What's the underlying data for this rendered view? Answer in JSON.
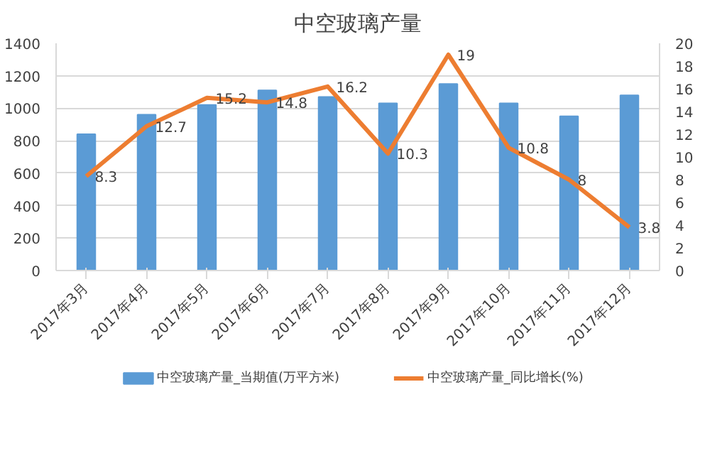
{
  "chart_data": {
    "type": "bar",
    "title": "中空玻璃产量",
    "categories": [
      "2017年3月",
      "2017年4月",
      "2017年5月",
      "2017年6月",
      "2017年7月",
      "2017年8月",
      "2017年9月",
      "2017年10月",
      "2017年11月",
      "2017年12月"
    ],
    "series": [
      {
        "name": "中空玻璃产量_当期值(万平方米)",
        "color": "#5b9bd5",
        "values": [
          840,
          960,
          1020,
          1110,
          1070,
          1030,
          1150,
          1030,
          950,
          1080
        ]
      },
      {
        "name": "中空玻璃产量_同比增长(%)",
        "color": "#ed7d31",
        "type": "line",
        "axis": "y2",
        "data_labels": true,
        "values": [
          8.3,
          12.7,
          15.2,
          14.8,
          16.2,
          10.3,
          19,
          10.8,
          8,
          3.8
        ]
      }
    ],
    "ylim": [
      0,
      1400
    ],
    "yticks": [
      0,
      200,
      400,
      600,
      800,
      1000,
      1200,
      1400
    ],
    "y2lim": [
      0,
      20
    ],
    "y2ticks": [
      0,
      2,
      4,
      6,
      8,
      10,
      12,
      14,
      16,
      18,
      20
    ],
    "grid": "y",
    "legend": "bottom"
  }
}
